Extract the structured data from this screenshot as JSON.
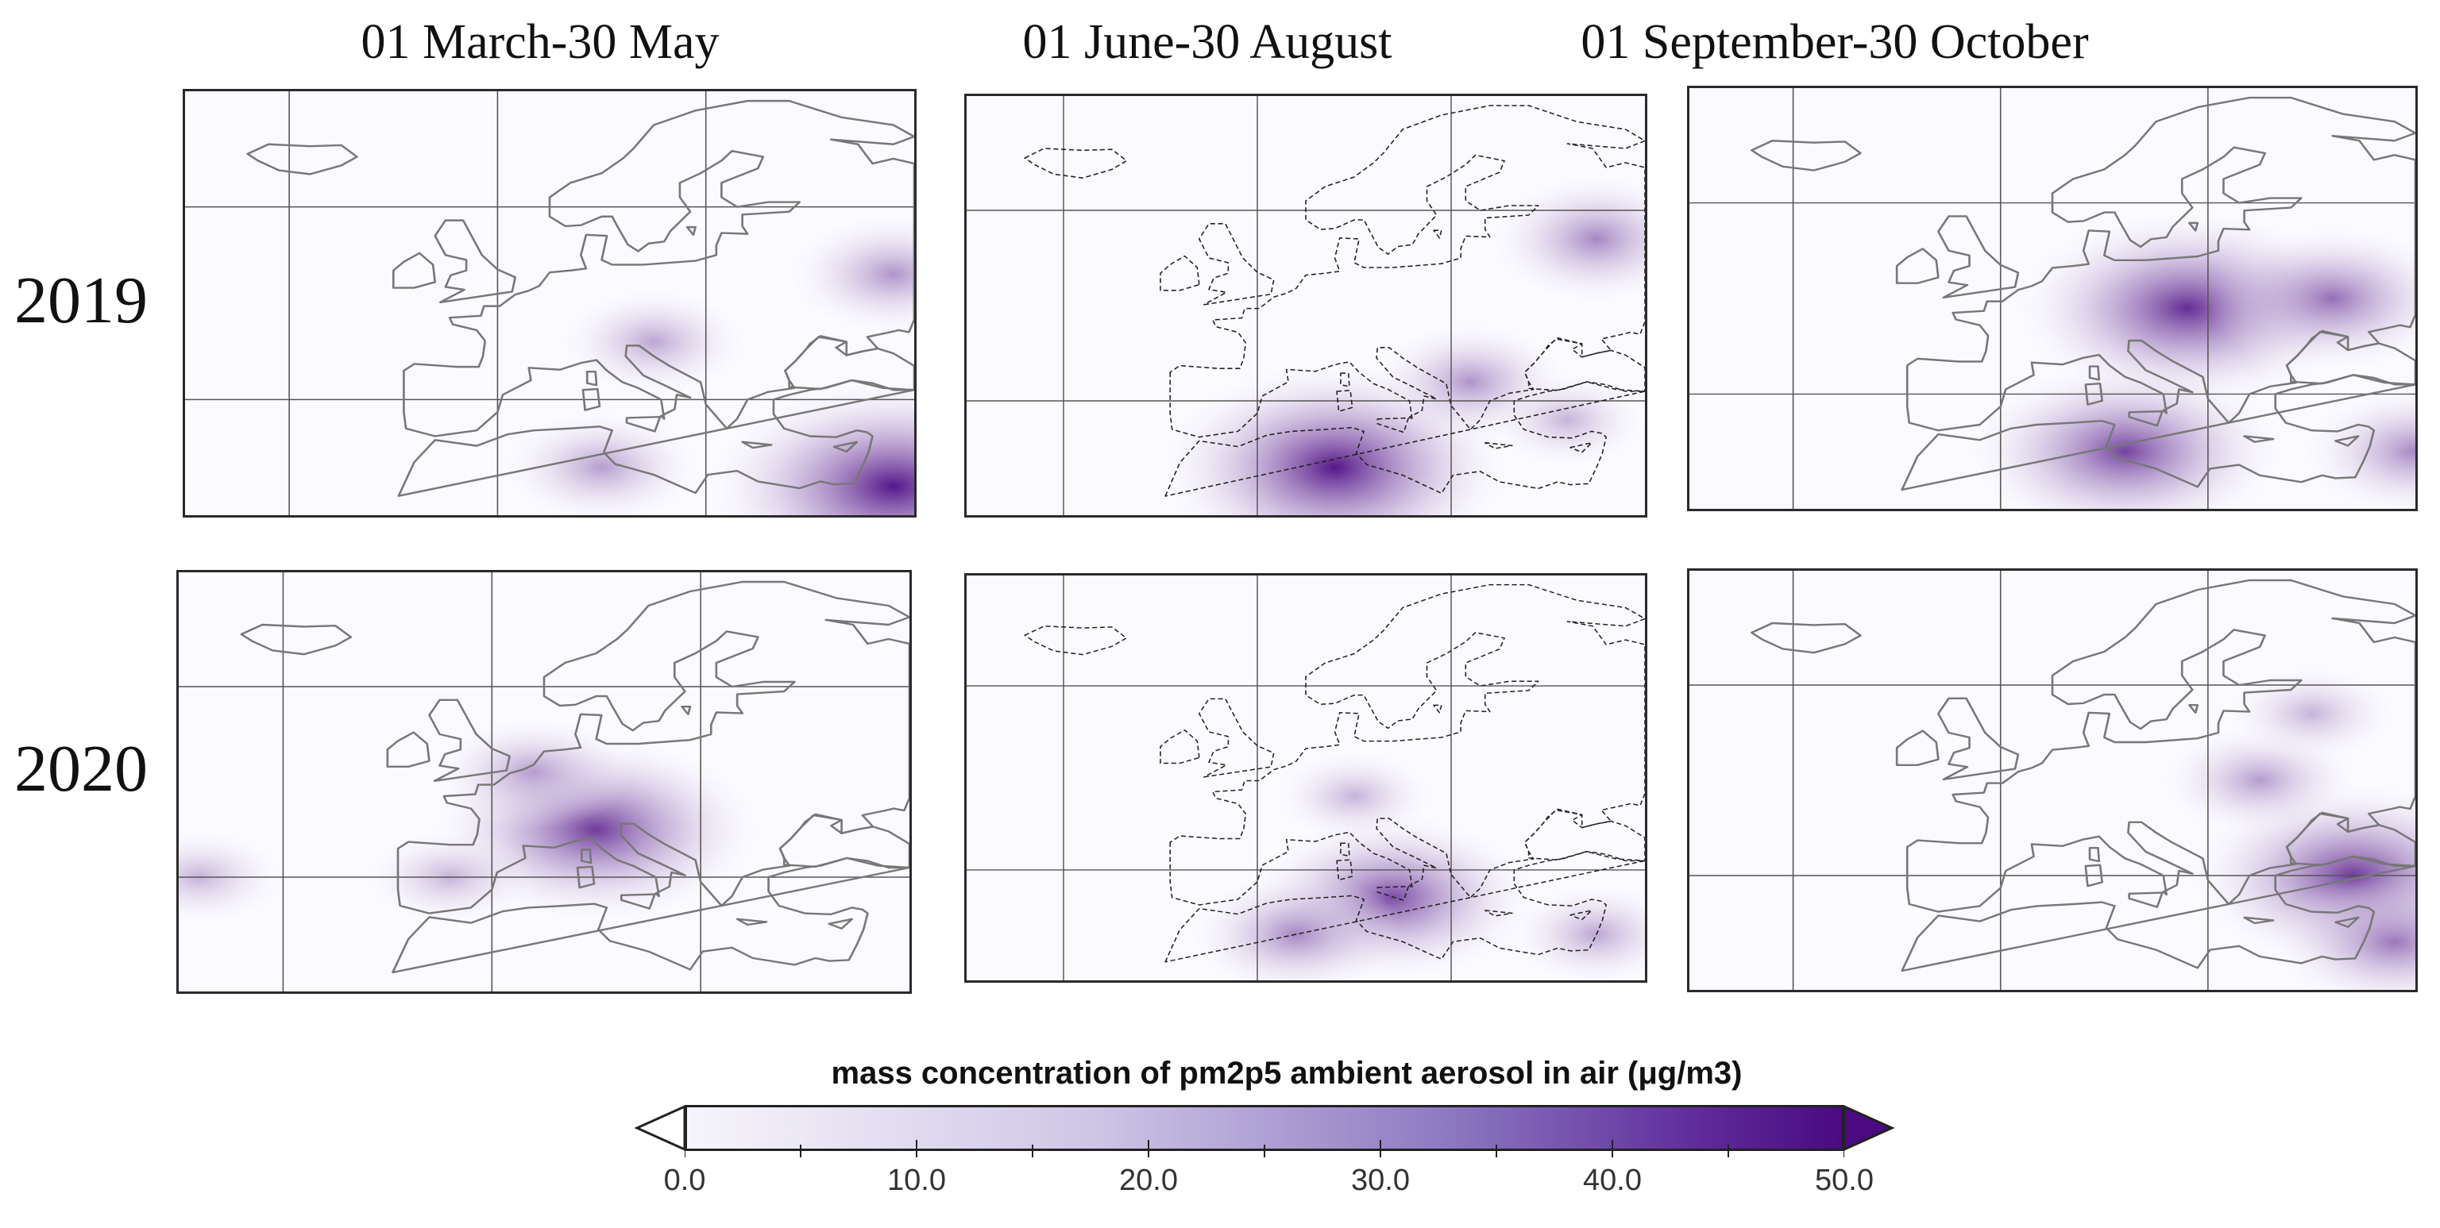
{
  "figure": {
    "column_titles": [
      "01 March-30 May",
      "01 June-30 August",
      "01 September-30 October"
    ],
    "row_titles": [
      "2019",
      "2020"
    ],
    "panels": [
      {
        "year": "2019",
        "period": "01 March-30 May",
        "coast_style": "gray",
        "hotspots": [
          {
            "label": "south-east corner",
            "lon": 38,
            "lat": 31,
            "intensity": 50
          },
          {
            "label": "north Africa",
            "lon": 10,
            "lat": 33,
            "intensity": 20
          },
          {
            "label": "central Europe",
            "lon": 15,
            "lat": 46,
            "intensity": 18
          },
          {
            "label": "Russia",
            "lon": 38,
            "lat": 53,
            "intensity": 22
          }
        ]
      },
      {
        "year": "2019",
        "period": "01 June-30 August",
        "coast_style": "dashed",
        "hotspots": [
          {
            "label": "north Africa",
            "lon": 8,
            "lat": 33,
            "intensity": 50
          },
          {
            "label": "Balkans",
            "lon": 22,
            "lat": 42,
            "intensity": 22
          },
          {
            "label": "Russia",
            "lon": 35,
            "lat": 57,
            "intensity": 25
          },
          {
            "label": "Turkey",
            "lon": 32,
            "lat": 38,
            "intensity": 15
          }
        ]
      },
      {
        "year": "2019",
        "period": "01 September-30 October",
        "coast_style": "gray",
        "hotspots": [
          {
            "label": "central Europe",
            "lon": 18,
            "lat": 49,
            "intensity": 45
          },
          {
            "label": "eastern Europe",
            "lon": 32,
            "lat": 50,
            "intensity": 30
          },
          {
            "label": "north Africa",
            "lon": 12,
            "lat": 34,
            "intensity": 40
          },
          {
            "label": "Middle East",
            "lon": 40,
            "lat": 34,
            "intensity": 25
          }
        ]
      },
      {
        "year": "2020",
        "period": "01 March-30 May",
        "coast_style": "gray",
        "hotspots": [
          {
            "label": "Po Valley",
            "lon": 10,
            "lat": 45,
            "intensity": 42
          },
          {
            "label": "Benelux",
            "lon": 4,
            "lat": 51,
            "intensity": 20
          },
          {
            "label": "Iberia",
            "lon": -4,
            "lat": 40,
            "intensity": 15
          },
          {
            "label": "Atlantic",
            "lon": -28,
            "lat": 40,
            "intensity": 15
          }
        ]
      },
      {
        "year": "2020",
        "period": "01 June-30 August",
        "coast_style": "dashed",
        "hotspots": [
          {
            "label": "Sicily",
            "lon": 14,
            "lat": 37,
            "intensity": 38
          },
          {
            "label": "north Africa",
            "lon": 4,
            "lat": 33,
            "intensity": 25
          },
          {
            "label": "central Europe",
            "lon": 10,
            "lat": 48,
            "intensity": 15
          },
          {
            "label": "Middle East",
            "lon": 35,
            "lat": 33,
            "intensity": 18
          }
        ]
      },
      {
        "year": "2020",
        "period": "01 September-30 October",
        "coast_style": "gray",
        "hotspots": [
          {
            "label": "Turkey",
            "lon": 34,
            "lat": 40,
            "intensity": 42
          },
          {
            "label": "eastern Europe",
            "lon": 25,
            "lat": 50,
            "intensity": 20
          },
          {
            "label": "Middle East",
            "lon": 38,
            "lat": 33,
            "intensity": 28
          },
          {
            "label": "Russia",
            "lon": 30,
            "lat": 57,
            "intensity": 15
          }
        ]
      }
    ],
    "map_extent": {
      "lon": [
        -30,
        40
      ],
      "lat": [
        28,
        72
      ]
    },
    "gridlines": {
      "lon": [
        -20,
        0,
        20
      ],
      "lat": [
        40,
        60
      ]
    }
  },
  "colorbar": {
    "title": "mass concentration of pm2p5 ambient aerosol in air (μg/m3)",
    "min": 0,
    "max": 50,
    "tick_labels": [
      "0.0",
      "10.0",
      "20.0",
      "30.0",
      "40.0",
      "50.0"
    ],
    "tick_values": [
      0,
      10,
      20,
      30,
      40,
      50
    ],
    "color_low": "#f7f5fb",
    "color_high": "#4b0a82",
    "extend": "both"
  }
}
